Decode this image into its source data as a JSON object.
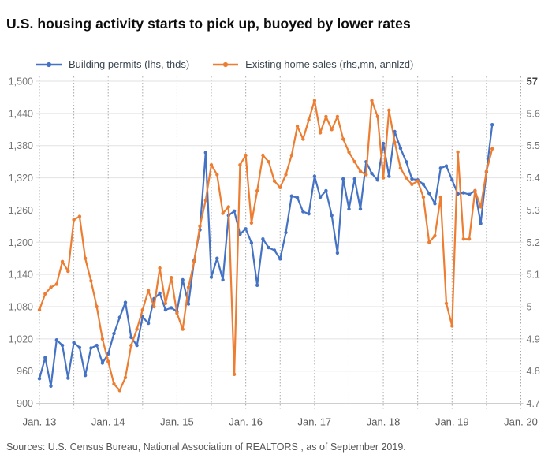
{
  "header": {
    "title": "U.S. housing activity starts to pick up, buoyed by lower rates"
  },
  "legend": {
    "items": [
      {
        "label": "Building permits (lhs, thds)",
        "color": "#4472c4"
      },
      {
        "label": "Existing home sales (rhs,mn, annlzd)",
        "color": "#ed7d31"
      }
    ]
  },
  "footer": {
    "source": "Sources: U.S. Census Bureau, National Association of REALTORS , as of September 2019."
  },
  "chart_data": {
    "type": "line",
    "title": "U.S. housing activity starts to pick up, buoyed by lower rates",
    "x_start": "Jan 2013",
    "x_end": "Aug 2019",
    "x_tick_labels": [
      "Jan. 13",
      "Jan. 14",
      "Jan. 15",
      "Jan. 16",
      "Jan. 17",
      "Jan. 18",
      "Jan. 19",
      "Jan. 20"
    ],
    "y_left_axis": {
      "min": 900,
      "max": 1500,
      "step": 60,
      "tick_labels": [
        "1,500",
        "1,440",
        "1,380",
        "1,320",
        "1,260",
        "1,200",
        "1,140",
        "1,080",
        "1,020",
        "960",
        "900"
      ]
    },
    "y_right_axis": {
      "min": 4.7,
      "max": 5.7,
      "step": 0.1,
      "tick_labels": [
        "57",
        "5.6",
        "5.5",
        "5.4",
        "5.3",
        "5.2",
        "5.1",
        "5",
        "4.9",
        "4.8",
        "4.7"
      ]
    },
    "grid": {
      "horizontal": true,
      "vertical_dotted_every_months": 6
    },
    "legend_position": "top",
    "colors": {
      "grid": "#e2e2e2",
      "dotted": "#a8a8a8",
      "axis_line": "#c8c8c8",
      "tick_label": "#757575",
      "x_label": "#595959",
      "right_top_label": "#3d3d3d"
    },
    "series": [
      {
        "name": "Building permits (lhs, thds)",
        "axis": "left",
        "color": "#4472c4",
        "values": [
          946,
          985,
          932,
          1018,
          1008,
          947,
          1013,
          1004,
          952,
          1003,
          1008,
          975,
          992,
          1030,
          1060,
          1088,
          1023,
          1008,
          1061,
          1049,
          1095,
          1105,
          1074,
          1078,
          1071,
          1130,
          1085,
          1166,
          1223,
          1367,
          1135,
          1170,
          1130,
          1250,
          1258,
          1215,
          1225,
          1199,
          1120,
          1206,
          1190,
          1185,
          1169,
          1218,
          1286,
          1283,
          1257,
          1253,
          1323,
          1284,
          1296,
          1250,
          1180,
          1318,
          1262,
          1318,
          1262,
          1350,
          1328,
          1316,
          1384,
          1323,
          1406,
          1375,
          1350,
          1318,
          1316,
          1308,
          1291,
          1272,
          1338,
          1342,
          1316,
          1290,
          1292,
          1289,
          1296,
          1235,
          1331,
          1419
        ]
      },
      {
        "name": "Existing home sales (rhs,mn, annlzd)",
        "axis": "right",
        "color": "#ed7d31",
        "values": [
          4.99,
          5.04,
          5.06,
          5.07,
          5.14,
          5.11,
          5.27,
          5.28,
          5.15,
          5.08,
          5.0,
          4.9,
          4.83,
          4.76,
          4.74,
          4.78,
          4.88,
          4.93,
          4.99,
          5.05,
          5.0,
          5.12,
          5.01,
          5.09,
          4.98,
          4.93,
          5.06,
          5.14,
          5.25,
          5.33,
          5.44,
          5.41,
          5.29,
          5.31,
          4.79,
          5.44,
          5.47,
          5.26,
          5.36,
          5.47,
          5.45,
          5.39,
          5.37,
          5.41,
          5.47,
          5.56,
          5.52,
          5.58,
          5.64,
          5.54,
          5.59,
          5.55,
          5.59,
          5.52,
          5.48,
          5.45,
          5.42,
          5.41,
          5.64,
          5.59,
          5.4,
          5.61,
          5.51,
          5.43,
          5.4,
          5.38,
          5.39,
          5.34,
          5.2,
          5.22,
          5.34,
          5.01,
          4.94,
          5.48,
          5.21,
          5.21,
          5.36,
          5.31,
          5.42,
          5.49
        ]
      }
    ]
  }
}
